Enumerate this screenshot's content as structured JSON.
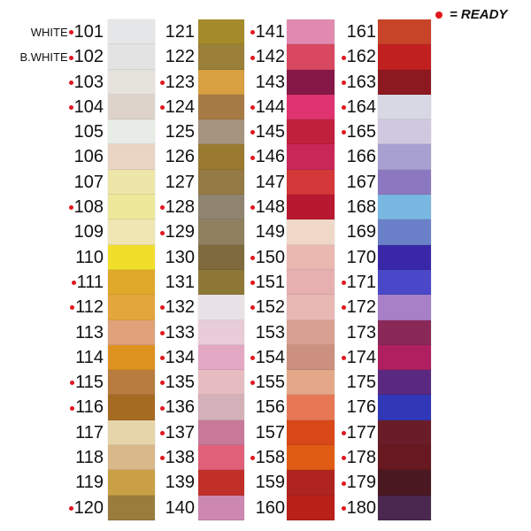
{
  "legend": {
    "marker_color": "#e0161e",
    "text": "= READY"
  },
  "columns": [
    {
      "swatches": [
        {
          "code": "101",
          "prefix": "WHITE",
          "ready": true,
          "color": "#e4e6e8"
        },
        {
          "code": "102",
          "prefix": "B.WHITE",
          "ready": true,
          "color": "#e2e3e2"
        },
        {
          "code": "103",
          "ready": true,
          "color": "#e6e3dd"
        },
        {
          "code": "104",
          "ready": true,
          "color": "#ddd3cb"
        },
        {
          "code": "105",
          "ready": false,
          "color": "#e8ece6"
        },
        {
          "code": "106",
          "ready": false,
          "color": "#ead4c4"
        },
        {
          "code": "107",
          "ready": false,
          "color": "#ede6a8"
        },
        {
          "code": "108",
          "ready": true,
          "color": "#ede89a"
        },
        {
          "code": "109",
          "ready": false,
          "color": "#efe6b4"
        },
        {
          "code": "110",
          "ready": false,
          "color": "#f0de2a"
        },
        {
          "code": "111",
          "ready": true,
          "color": "#e0a82a"
        },
        {
          "code": "112",
          "ready": true,
          "color": "#e3a63c"
        },
        {
          "code": "113",
          "ready": false,
          "color": "#e0a27a"
        },
        {
          "code": "114",
          "ready": false,
          "color": "#dd9220"
        },
        {
          "code": "115",
          "ready": true,
          "color": "#b87c3e"
        },
        {
          "code": "116",
          "ready": true,
          "color": "#a66b22"
        },
        {
          "code": "117",
          "ready": false,
          "color": "#e6d4aa"
        },
        {
          "code": "118",
          "ready": false,
          "color": "#d9b88a"
        },
        {
          "code": "119",
          "ready": false,
          "color": "#c9a044"
        },
        {
          "code": "120",
          "ready": true,
          "color": "#9a7c3c"
        }
      ]
    },
    {
      "swatches": [
        {
          "code": "121",
          "ready": false,
          "color": "#a48a2a"
        },
        {
          "code": "122",
          "ready": false,
          "color": "#9a8038"
        },
        {
          "code": "123",
          "ready": true,
          "color": "#d8a040"
        },
        {
          "code": "124",
          "ready": true,
          "color": "#a67a44"
        },
        {
          "code": "125",
          "ready": false,
          "color": "#a69480"
        },
        {
          "code": "126",
          "ready": false,
          "color": "#9a7a30"
        },
        {
          "code": "127",
          "ready": false,
          "color": "#957a45"
        },
        {
          "code": "128",
          "ready": true,
          "color": "#8f8470"
        },
        {
          "code": "129",
          "ready": true,
          "color": "#8f8060"
        },
        {
          "code": "130",
          "ready": false,
          "color": "#7e6a3c"
        },
        {
          "code": "131",
          "ready": false,
          "color": "#8e7838"
        },
        {
          "code": "132",
          "ready": true,
          "color": "#e8e2e6"
        },
        {
          "code": "133",
          "ready": true,
          "color": "#e8ccd8"
        },
        {
          "code": "134",
          "ready": true,
          "color": "#e2a8c4"
        },
        {
          "code": "135",
          "ready": true,
          "color": "#e6bcc0"
        },
        {
          "code": "136",
          "ready": true,
          "color": "#d4b0b8"
        },
        {
          "code": "137",
          "ready": true,
          "color": "#c8799a"
        },
        {
          "code": "138",
          "ready": true,
          "color": "#e0607a"
        },
        {
          "code": "139",
          "ready": false,
          "color": "#c03028"
        },
        {
          "code": "140",
          "ready": false,
          "color": "#cc88b0"
        }
      ]
    },
    {
      "swatches": [
        {
          "code": "141",
          "ready": true,
          "color": "#e08ab0"
        },
        {
          "code": "142",
          "ready": true,
          "color": "#d84860"
        },
        {
          "code": "143",
          "ready": false,
          "color": "#861848"
        },
        {
          "code": "144",
          "ready": true,
          "color": "#e03470"
        },
        {
          "code": "145",
          "ready": true,
          "color": "#c0203c"
        },
        {
          "code": "146",
          "ready": true,
          "color": "#c82858"
        },
        {
          "code": "147",
          "ready": false,
          "color": "#d43838"
        },
        {
          "code": "148",
          "ready": true,
          "color": "#b81830"
        },
        {
          "code": "149",
          "ready": false,
          "color": "#f0d8c8"
        },
        {
          "code": "150",
          "ready": true,
          "color": "#eab8b0"
        },
        {
          "code": "151",
          "ready": true,
          "color": "#e6b0b0"
        },
        {
          "code": "152",
          "ready": true,
          "color": "#e8b8b4"
        },
        {
          "code": "153",
          "ready": false,
          "color": "#d8a090"
        },
        {
          "code": "154",
          "ready": true,
          "color": "#cc9080"
        },
        {
          "code": "155",
          "ready": true,
          "color": "#e4a888"
        },
        {
          "code": "156",
          "ready": false,
          "color": "#e67856"
        },
        {
          "code": "157",
          "ready": false,
          "color": "#d84818"
        },
        {
          "code": "158",
          "ready": true,
          "color": "#e05c14"
        },
        {
          "code": "159",
          "ready": false,
          "color": "#b02420"
        },
        {
          "code": "160",
          "ready": false,
          "color": "#b82018"
        }
      ]
    },
    {
      "swatches": [
        {
          "code": "161",
          "ready": false,
          "color": "#c84428"
        },
        {
          "code": "162",
          "ready": true,
          "color": "#c02020"
        },
        {
          "code": "163",
          "ready": true,
          "color": "#8c1820"
        },
        {
          "code": "164",
          "ready": true,
          "color": "#d8d8e4"
        },
        {
          "code": "165",
          "ready": true,
          "color": "#d0c8e0"
        },
        {
          "code": "166",
          "ready": false,
          "color": "#a8a0d0"
        },
        {
          "code": "167",
          "ready": false,
          "color": "#8c78c0"
        },
        {
          "code": "168",
          "ready": false,
          "color": "#78b8e0"
        },
        {
          "code": "169",
          "ready": false,
          "color": "#6a80c8"
        },
        {
          "code": "170",
          "ready": false,
          "color": "#3828a8"
        },
        {
          "code": "171",
          "ready": true,
          "color": "#4a48c8"
        },
        {
          "code": "172",
          "ready": true,
          "color": "#a880c8"
        },
        {
          "code": "173",
          "ready": false,
          "color": "#8a2858"
        },
        {
          "code": "174",
          "ready": true,
          "color": "#b02060"
        },
        {
          "code": "175",
          "ready": false,
          "color": "#5a2880"
        },
        {
          "code": "176",
          "ready": false,
          "color": "#3038b8"
        },
        {
          "code": "177",
          "ready": true,
          "color": "#6a1c28"
        },
        {
          "code": "178",
          "ready": true,
          "color": "#681820"
        },
        {
          "code": "179",
          "ready": true,
          "color": "#4a1820"
        },
        {
          "code": "180",
          "ready": true,
          "color": "#4a2850"
        }
      ]
    }
  ]
}
